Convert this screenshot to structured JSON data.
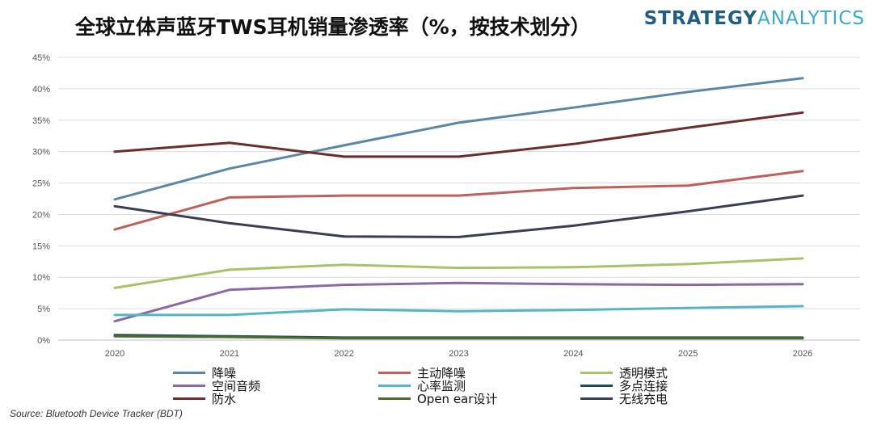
{
  "header": {
    "title": "全球立体声蓝牙TWS耳机销量渗透率（%，按技术划分）",
    "brand_part1": "STRATEGY",
    "brand_part2": "ANALYTICS"
  },
  "footer": {
    "source": "Source: Bluetooth Device Tracker (BDT)"
  },
  "chart_data": {
    "type": "line",
    "title": "全球立体声蓝牙TWS耳机销量渗透率（%，按技术划分）",
    "x": [
      "2020",
      "2021",
      "2022",
      "2023",
      "2024",
      "2025",
      "2026"
    ],
    "y_ticks": [
      "0%",
      "5%",
      "10%",
      "15%",
      "20%",
      "25%",
      "30%",
      "35%",
      "40%",
      "45%"
    ],
    "ylim": [
      0,
      45
    ],
    "grid": true,
    "legend_position": "bottom",
    "series": [
      {
        "name": "降噪",
        "color": "#5b86a6",
        "values": [
          22.4,
          27.3,
          31.0,
          34.6,
          37.0,
          39.5,
          41.7
        ]
      },
      {
        "name": "主动降噪",
        "color": "#c0605c",
        "values": [
          17.6,
          22.7,
          23.0,
          23.0,
          24.2,
          24.6,
          26.9
        ]
      },
      {
        "name": "透明模式",
        "color": "#a9c26a",
        "values": [
          8.3,
          11.2,
          12.0,
          11.5,
          11.6,
          12.1,
          13.0
        ]
      },
      {
        "name": "空间音频",
        "color": "#8a6aa6",
        "values": [
          3.0,
          8.0,
          8.8,
          9.1,
          8.9,
          8.8,
          8.9
        ]
      },
      {
        "name": "心率监测",
        "color": "#55b5c5",
        "values": [
          4.0,
          4.0,
          4.9,
          4.6,
          4.8,
          5.1,
          5.4
        ]
      },
      {
        "name": "多点连接",
        "color": "#1f4a5a",
        "values": [
          0.8,
          0.6,
          0.4,
          0.4,
          0.4,
          0.4,
          0.4
        ]
      },
      {
        "name": "防水",
        "color": "#6b2e2e",
        "values": [
          30.0,
          31.4,
          29.2,
          29.2,
          31.2,
          33.8,
          36.2
        ]
      },
      {
        "name": "Open ear设计",
        "color": "#4a6a30",
        "values": [
          0.6,
          0.5,
          0.3,
          0.3,
          0.3,
          0.3,
          0.3
        ]
      },
      {
        "name": "无线充电",
        "color": "#3a3e52",
        "values": [
          21.3,
          18.6,
          16.5,
          16.4,
          18.2,
          20.5,
          23.0
        ]
      }
    ]
  }
}
